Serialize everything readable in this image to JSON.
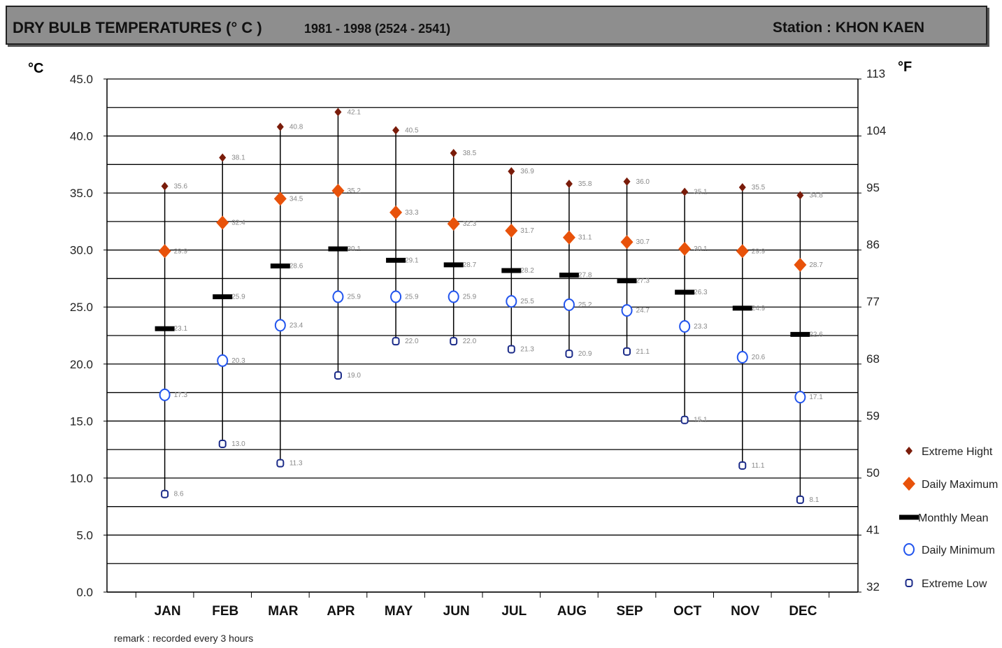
{
  "header": {
    "title": "DRY  BULB TEMPERATURES (° C )",
    "period": "1981 - 1998 (2524 - 2541)",
    "station": "Station  : KHON KAEN"
  },
  "remark": "remark : recorded every 3 hours",
  "chart_data": {
    "type": "scatter",
    "left_unit": "°C",
    "right_unit": "°F",
    "ylim": [
      0,
      45
    ],
    "left_ticks": [
      "0.0",
      "5.0",
      "10.0",
      "15.0",
      "20.0",
      "25.0",
      "30.0",
      "35.0",
      "40.0",
      "45.0"
    ],
    "right_ticks": [
      "32",
      "41",
      "50",
      "59",
      "68",
      "77",
      "86",
      "95",
      "104",
      "113"
    ],
    "categories": [
      "JAN",
      "FEB",
      "MAR",
      "APR",
      "MAY",
      "JUN",
      "JUL",
      "AUG",
      "SEP",
      "OCT",
      "NOV",
      "DEC"
    ],
    "series": [
      {
        "name": "Extreme Hight",
        "color": "#7a1c0a",
        "marker": "small-diamond",
        "values": [
          35.6,
          38.1,
          40.8,
          42.1,
          40.5,
          38.5,
          36.9,
          35.8,
          36.0,
          35.1,
          35.5,
          34.8
        ],
        "labels": [
          "35.6",
          "38.1",
          "40.8",
          "42.1",
          "40.5",
          "38.5",
          "36.9",
          "35.8",
          "36.0",
          "35.1",
          "35.5",
          "34.8"
        ]
      },
      {
        "name": "Daily Maximum",
        "color": "#e8520a",
        "marker": "diamond",
        "values": [
          29.9,
          32.4,
          34.5,
          35.2,
          33.3,
          32.3,
          31.7,
          31.1,
          30.7,
          30.1,
          29.9,
          28.7
        ],
        "labels": [
          "29.9",
          "32.4",
          "34.5",
          "35.2",
          "33.3",
          "32.3",
          "31.7",
          "31.1",
          "30.7",
          "30.1",
          "29.9",
          "28.7"
        ]
      },
      {
        "name": "Monthly Mean",
        "color": "#000000",
        "marker": "dash",
        "values": [
          23.1,
          25.9,
          28.6,
          30.1,
          29.1,
          28.7,
          28.2,
          27.8,
          27.3,
          26.3,
          24.9,
          22.6
        ],
        "labels": [
          "23.1",
          "25.9",
          "28.6",
          "30.1",
          "29.1",
          "28.7",
          "28.2",
          "27.8",
          "27.3",
          "26.3",
          "24.9",
          "22.6"
        ]
      },
      {
        "name": "Daily Minimum",
        "color": "#2255ee",
        "marker": "circle",
        "values": [
          17.3,
          20.3,
          23.4,
          25.9,
          25.9,
          25.9,
          25.5,
          25.2,
          24.7,
          23.3,
          20.6,
          17.1
        ],
        "labels": [
          "17.3",
          "20.3",
          "23.4",
          "25.9",
          "25.9",
          "25.9",
          "25.5",
          "25.2",
          "24.7",
          "23.3",
          "20.6",
          "17.1"
        ]
      },
      {
        "name": "Extreme Low",
        "color": "#1a2a88",
        "marker": "small-circle",
        "values": [
          8.6,
          13.0,
          11.3,
          19.0,
          22.0,
          22.0,
          21.3,
          20.9,
          21.1,
          15.1,
          11.1,
          8.1
        ],
        "labels": [
          "8.6",
          "13.0",
          "11.3",
          "19.0",
          "22.0",
          "22.0",
          "21.3",
          "20.9",
          "21.1",
          "15.1",
          "11.1",
          "8.1"
        ]
      }
    ],
    "grid": true,
    "legend": "right"
  }
}
